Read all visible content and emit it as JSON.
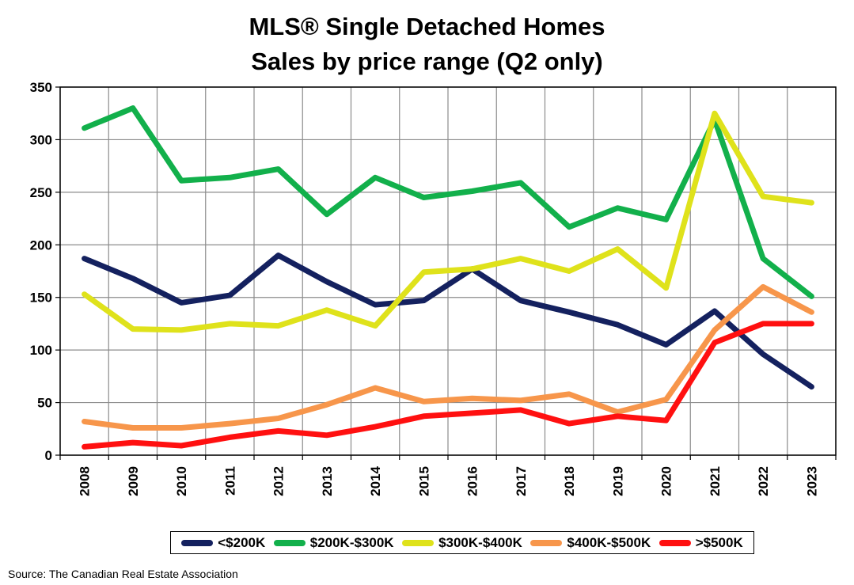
{
  "chart_data": {
    "type": "line",
    "title": "MLS® Single Detached Homes",
    "subtitle": "Sales by price range (Q2 only)",
    "xlabel": "",
    "ylabel": "",
    "x": [
      "2008",
      "2009",
      "2010",
      "2011",
      "2012",
      "2013",
      "2014",
      "2015",
      "2016",
      "2017",
      "2018",
      "2019",
      "2020",
      "2021",
      "2022",
      "2023"
    ],
    "ylim": [
      0,
      350
    ],
    "yticks": [
      0,
      50,
      100,
      150,
      200,
      250,
      300,
      350
    ],
    "grid": true,
    "legend_position": "bottom",
    "series": [
      {
        "name": "<$200K",
        "color": "#14215f",
        "values": [
          187,
          168,
          145,
          152,
          190,
          165,
          143,
          147,
          177,
          147,
          136,
          124,
          105,
          137,
          96,
          65
        ]
      },
      {
        "name": "$200K-$300K",
        "color": "#12b04b",
        "values": [
          311,
          330,
          261,
          264,
          272,
          229,
          264,
          245,
          251,
          259,
          217,
          235,
          224,
          319,
          187,
          151
        ]
      },
      {
        "name": "$300K-$400K",
        "color": "#dfe21b",
        "values": [
          153,
          120,
          119,
          125,
          123,
          138,
          123,
          174,
          177,
          187,
          175,
          196,
          159,
          325,
          246,
          240
        ]
      },
      {
        "name": "$400K-$500K",
        "color": "#f7964b",
        "values": [
          32,
          26,
          26,
          30,
          35,
          48,
          64,
          51,
          54,
          52,
          58,
          41,
          53,
          119,
          160,
          136
        ]
      },
      {
        "name": ">$500K",
        "color": "#ff1010",
        "values": [
          8,
          12,
          9,
          17,
          23,
          19,
          27,
          37,
          40,
          43,
          30,
          37,
          33,
          107,
          125,
          125
        ]
      }
    ],
    "source": "Source: The Canadian Real Estate Association"
  }
}
